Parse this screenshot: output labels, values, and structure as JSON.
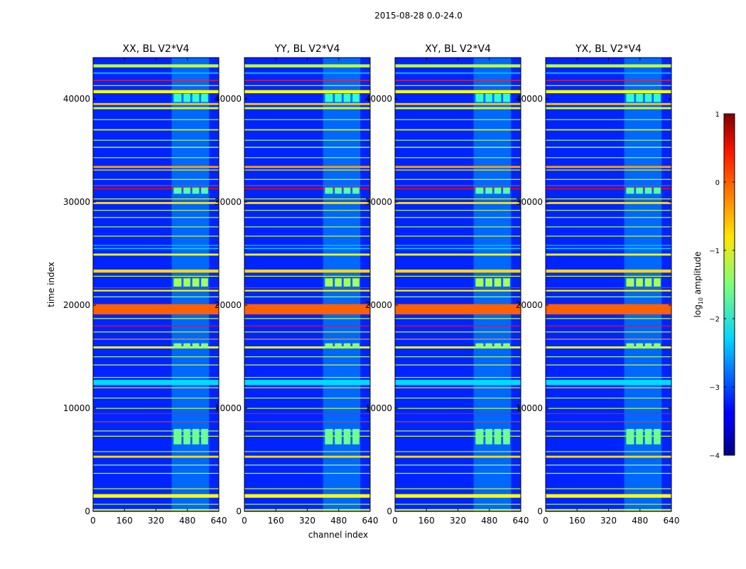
{
  "chart_data": {
    "type": "heatmap",
    "suptitle": "2015-08-28 0.0-24.0",
    "xlabel": "channel index",
    "ylabel": "time index",
    "xlim": [
      0,
      640
    ],
    "ylim": [
      0,
      44000
    ],
    "xticks": [
      0,
      160,
      320,
      480,
      640
    ],
    "yticks": [
      0,
      10000,
      20000,
      30000,
      40000
    ],
    "colorbar": {
      "label": "log10 amplitude",
      "label_main": "log",
      "label_sub": "10",
      "label_suffix": " amplitude",
      "range": [
        -4,
        1
      ],
      "ticks": [
        1,
        0,
        -1,
        -2,
        -3,
        -4
      ],
      "tick_labels": [
        "1",
        "0",
        "−1",
        "−2",
        "−3",
        "−4"
      ]
    },
    "panels": [
      {
        "title": "XX, BL V2*V4",
        "pol": "XX"
      },
      {
        "title": "YY, BL V2*V4",
        "pol": "YY"
      },
      {
        "title": "XY, BL V2*V4",
        "pol": "XY"
      },
      {
        "title": "YX, BL V2*V4",
        "pol": "YX"
      }
    ],
    "background_level": -3.2,
    "rfi_channel_range": [
      400,
      590
    ],
    "rfi_channel_level": -2.6,
    "horizontal_bands": [
      {
        "t": 43200,
        "w": 300,
        "v": -1.2
      },
      {
        "t": 42500,
        "w": 150,
        "v": -2.5
      },
      {
        "t": 41800,
        "w": 60,
        "v": 0.2
      },
      {
        "t": 41300,
        "w": 60,
        "v": -0.8
      },
      {
        "t": 40700,
        "w": 300,
        "v": -0.9
      },
      {
        "t": 39500,
        "w": 200,
        "v": -0.6
      },
      {
        "t": 39100,
        "w": 200,
        "v": -1.1
      },
      {
        "t": 38000,
        "w": 60,
        "v": -1.3
      },
      {
        "t": 37000,
        "w": 120,
        "v": -1.0
      },
      {
        "t": 36000,
        "w": 60,
        "v": -1.4
      },
      {
        "t": 35300,
        "w": 100,
        "v": -1.2
      },
      {
        "t": 34300,
        "w": 80,
        "v": -1.3
      },
      {
        "t": 33400,
        "w": 200,
        "v": -0.4
      },
      {
        "t": 33100,
        "w": 80,
        "v": -0.9
      },
      {
        "t": 32200,
        "w": 60,
        "v": -1.0
      },
      {
        "t": 31600,
        "w": 60,
        "v": 0.1
      },
      {
        "t": 31300,
        "w": 50,
        "v": 0.3
      },
      {
        "t": 30300,
        "w": 80,
        "v": -1.1
      },
      {
        "t": 29900,
        "w": 200,
        "v": -0.7
      },
      {
        "t": 29200,
        "w": 60,
        "v": -1.2
      },
      {
        "t": 28500,
        "w": 80,
        "v": -1.0
      },
      {
        "t": 27600,
        "w": 60,
        "v": -1.3
      },
      {
        "t": 26700,
        "w": 60,
        "v": -1.1
      },
      {
        "t": 25800,
        "w": 60,
        "v": -2.3
      },
      {
        "t": 25500,
        "w": 80,
        "v": -2.2
      },
      {
        "t": 24900,
        "w": 200,
        "v": -1.0
      },
      {
        "t": 23300,
        "w": 300,
        "v": -0.7
      },
      {
        "t": 22800,
        "w": 80,
        "v": -1.1
      },
      {
        "t": 21700,
        "w": 60,
        "v": 0.2
      },
      {
        "t": 21400,
        "w": 150,
        "v": -1.0
      },
      {
        "t": 20800,
        "w": 80,
        "v": -1.3
      },
      {
        "t": 19600,
        "w": 1000,
        "v": -0.1
      },
      {
        "t": 18700,
        "w": 80,
        "v": -1.2
      },
      {
        "t": 18000,
        "w": 50,
        "v": 0.3
      },
      {
        "t": 17400,
        "w": 80,
        "v": -1.1
      },
      {
        "t": 16700,
        "w": 80,
        "v": -0.4
      },
      {
        "t": 15900,
        "w": 200,
        "v": -0.9
      },
      {
        "t": 15000,
        "w": 60,
        "v": -1.3
      },
      {
        "t": 14200,
        "w": 80,
        "v": -1.1
      },
      {
        "t": 13000,
        "w": 60,
        "v": -1.2
      },
      {
        "t": 12500,
        "w": 500,
        "v": -2.3
      },
      {
        "t": 12000,
        "w": 60,
        "v": -0.8
      },
      {
        "t": 11000,
        "w": 60,
        "v": -1.3
      },
      {
        "t": 10000,
        "w": 60,
        "v": -1.2
      },
      {
        "t": 9500,
        "w": 50,
        "v": 0.3
      },
      {
        "t": 8700,
        "w": 80,
        "v": 0.1
      },
      {
        "t": 7800,
        "w": 80,
        "v": -1.2
      },
      {
        "t": 7300,
        "w": 60,
        "v": -1.0
      },
      {
        "t": 5800,
        "w": 80,
        "v": -1.2
      },
      {
        "t": 5300,
        "w": 200,
        "v": -0.7
      },
      {
        "t": 4500,
        "w": 60,
        "v": -1.3
      },
      {
        "t": 3700,
        "w": 60,
        "v": -1.1
      },
      {
        "t": 2200,
        "w": 80,
        "v": -1.2
      },
      {
        "t": 1500,
        "w": 350,
        "v": -0.9
      },
      {
        "t": 700,
        "w": 60,
        "v": -1.3
      },
      {
        "t": 150,
        "w": 150,
        "v": -1.0
      }
    ],
    "rfi_blocks": [
      {
        "t0": 6500,
        "t1": 8000,
        "v": -1.6
      },
      {
        "t0": 15800,
        "t1": 16300,
        "v": -1.4
      },
      {
        "t0": 21800,
        "t1": 22600,
        "v": -1.3
      },
      {
        "t0": 30800,
        "t1": 31400,
        "v": -1.7
      },
      {
        "t0": 39700,
        "t1": 40500,
        "v": -1.9
      }
    ],
    "rfi_block_columns": [
      [
        410,
        450
      ],
      [
        460,
        495
      ],
      [
        505,
        540
      ],
      [
        550,
        585
      ]
    ]
  }
}
